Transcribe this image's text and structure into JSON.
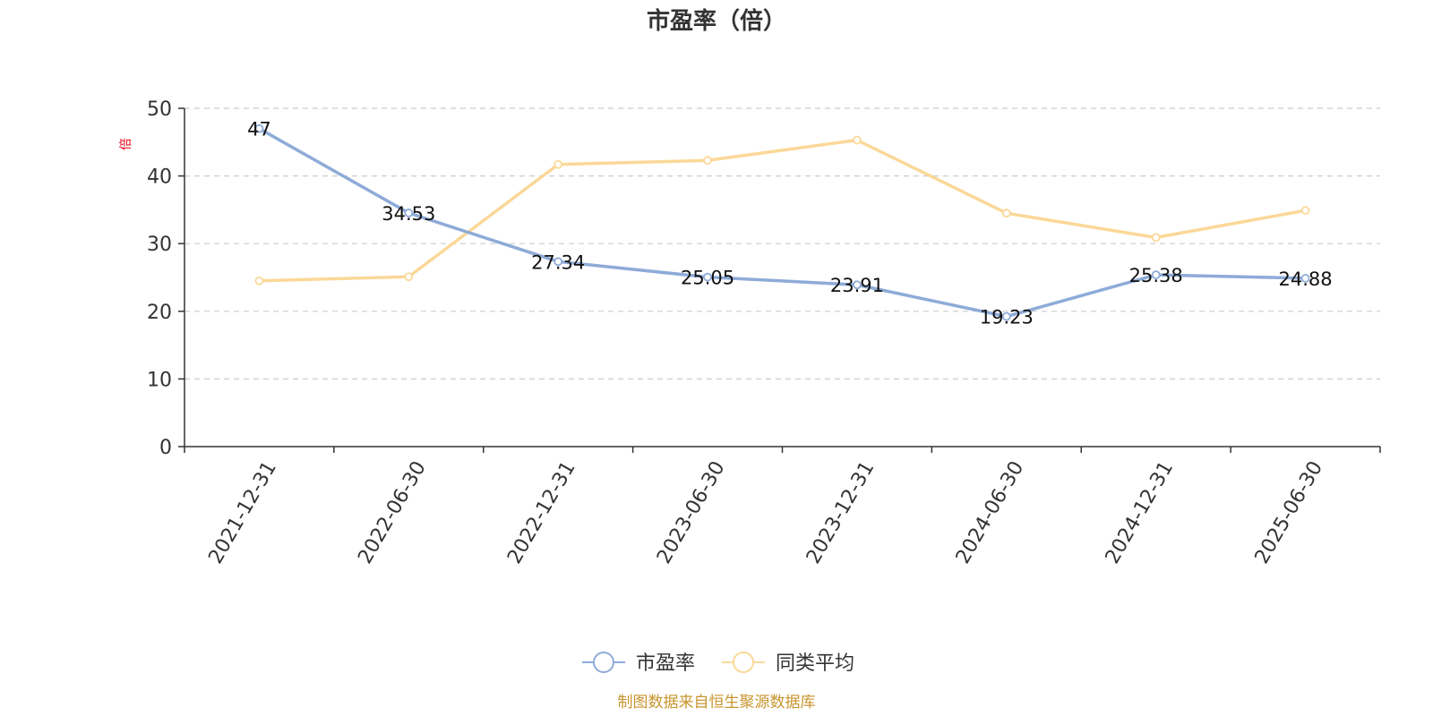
{
  "chart_data": {
    "type": "line",
    "title": "市盈率（倍）",
    "ylabel": "倍",
    "ylabel_color": "#e60012",
    "x": [
      "2021-12-31",
      "2022-06-30",
      "2022-12-31",
      "2023-06-30",
      "2023-12-31",
      "2024-06-30",
      "2024-12-31",
      "2025-06-30"
    ],
    "ylim": [
      0,
      50
    ],
    "yticks": [
      0,
      10,
      20,
      30,
      40,
      50
    ],
    "grid": true,
    "legend_position": "bottom-center",
    "series": [
      {
        "name": "市盈率",
        "color": "#8eabd8",
        "values": [
          47,
          34.53,
          27.34,
          25.05,
          23.91,
          19.23,
          25.38,
          24.88
        ],
        "data_labels": [
          "47",
          "34.53",
          "27.34",
          "25.05",
          "23.91",
          "19.23",
          "25.38",
          "24.88"
        ]
      },
      {
        "name": "同类平均",
        "color": "#fbd898",
        "values": [
          24.5,
          25.1,
          41.7,
          42.3,
          45.3,
          34.5,
          30.9,
          34.9
        ]
      }
    ],
    "source_note": "制图数据来自恒生聚源数据库",
    "source_color": "#c8952e"
  }
}
